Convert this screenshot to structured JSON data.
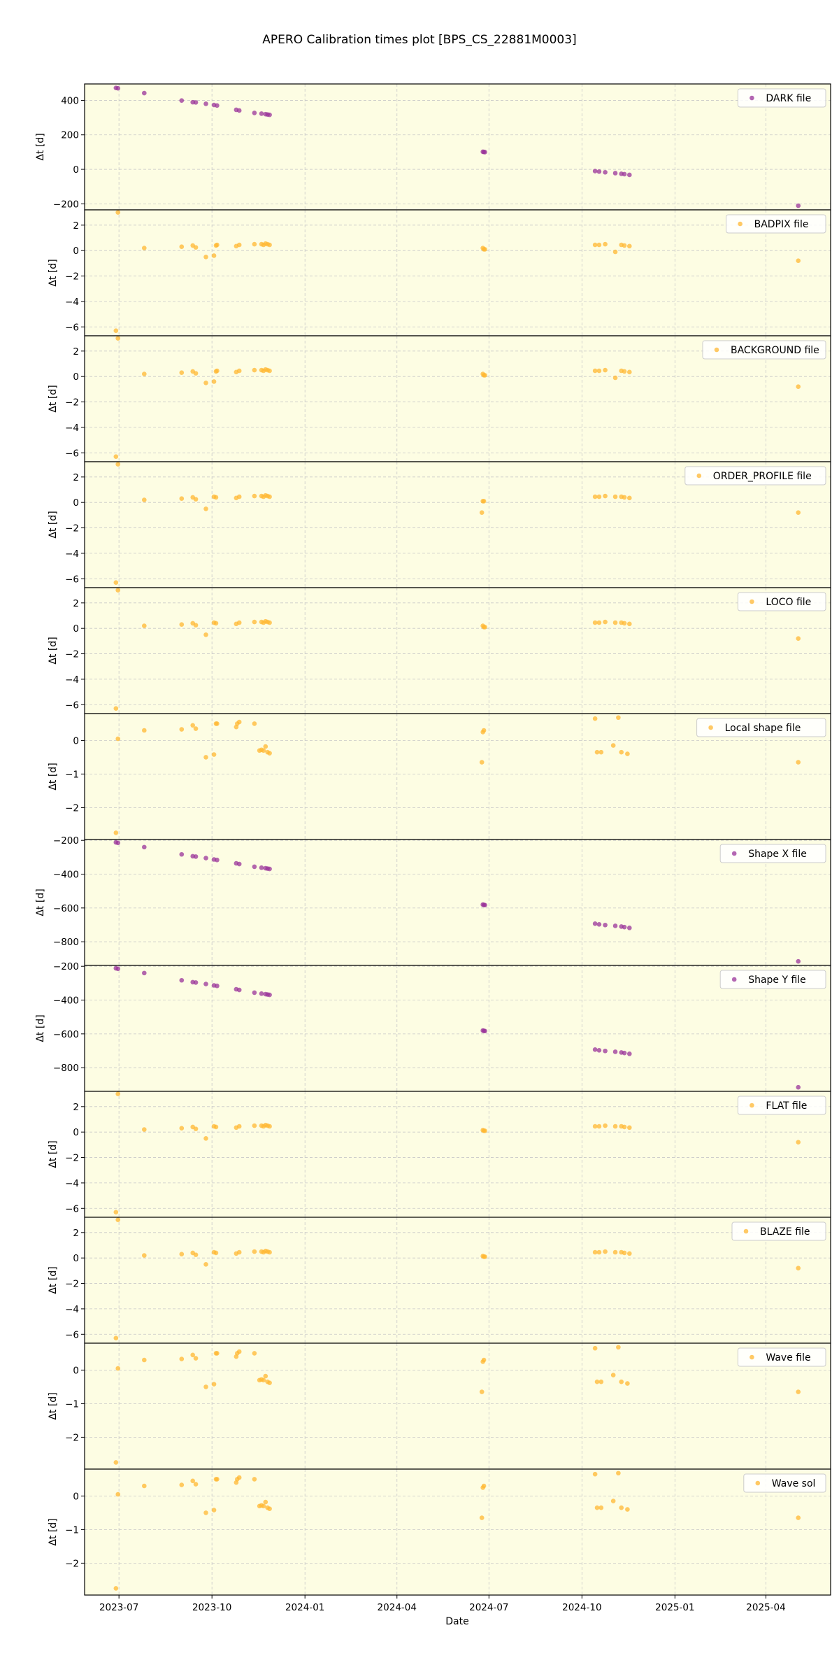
{
  "chart_data": {
    "type": "scatter",
    "title": "APERO Calibration times plot [BPS_CS_22881M0003]",
    "xlabel": "Date",
    "x_ticks": [
      "2023-07",
      "2023-10",
      "2024-01",
      "2024-04",
      "2024-07",
      "2024-10",
      "2025-01",
      "2025-04"
    ],
    "x_tick_dates": [
      "2023-07-01",
      "2023-10-01",
      "2024-01-01",
      "2024-04-01",
      "2024-07-01",
      "2024-10-01",
      "2025-01-01",
      "2025-04-01"
    ],
    "xlim": [
      "2023-05-28",
      "2025-06-04"
    ],
    "grid": true,
    "background": "#fdfde3",
    "colors": {
      "purple": "#993399",
      "orange": "#ffb732"
    },
    "panels": [
      {
        "legend": "DARK file",
        "color": "purple",
        "ylabel": "Δt [d]",
        "ylim": [
          -235,
          495
        ],
        "yticks": [
          -200,
          0,
          200,
          400
        ],
        "x": [
          "2023-06-28",
          "2023-06-30",
          "2023-07-26",
          "2023-09-01",
          "2023-09-12",
          "2023-09-15",
          "2023-09-25",
          "2023-10-03",
          "2023-10-06",
          "2023-10-25",
          "2023-10-28",
          "2023-11-12",
          "2023-11-19",
          "2023-11-23",
          "2023-11-25",
          "2023-11-27",
          "2024-06-25",
          "2024-06-26",
          "2024-06-27",
          "2024-10-14",
          "2024-10-18",
          "2024-10-24",
          "2024-11-03",
          "2024-11-09",
          "2024-11-12",
          "2024-11-17",
          "2025-05-03"
        ],
        "y": [
          472,
          470,
          442,
          399,
          389,
          388,
          380,
          373,
          370,
          345,
          341,
          327,
          323,
          320,
          318,
          316,
          102,
          101,
          100,
          -10,
          -13,
          -17,
          -22,
          -26,
          -28,
          -32,
          -211
        ]
      },
      {
        "legend": "BADPIX file",
        "color": "orange",
        "ylabel": "Δt [d]",
        "ylim": [
          -6.7,
          3.2
        ],
        "yticks": [
          -6,
          -4,
          -2,
          0,
          2
        ],
        "x": [
          "2023-06-28",
          "2023-06-30",
          "2023-07-26",
          "2023-09-01",
          "2023-09-12",
          "2023-09-15",
          "2023-09-25",
          "2023-10-03",
          "2023-10-05",
          "2023-10-06",
          "2023-10-25",
          "2023-10-28",
          "2023-11-12",
          "2023-11-19",
          "2023-11-21",
          "2023-11-23",
          "2023-11-25",
          "2023-11-27",
          "2024-06-25",
          "2024-06-26",
          "2024-06-27",
          "2024-10-14",
          "2024-10-18",
          "2024-10-24",
          "2024-11-03",
          "2024-11-09",
          "2024-11-12",
          "2024-11-17",
          "2025-05-03"
        ],
        "y": [
          -6.3,
          3.0,
          0.2,
          0.3,
          0.4,
          0.25,
          -0.5,
          -0.4,
          0.4,
          0.45,
          0.35,
          0.45,
          0.5,
          0.5,
          0.45,
          0.55,
          0.5,
          0.45,
          0.2,
          0.1,
          0.1,
          0.45,
          0.45,
          0.5,
          -0.1,
          0.45,
          0.4,
          0.35,
          -0.8
        ]
      },
      {
        "legend": "BACKGROUND file",
        "color": "orange",
        "ylabel": "Δt [d]",
        "ylim": [
          -6.7,
          3.2
        ],
        "yticks": [
          -6,
          -4,
          -2,
          0,
          2
        ],
        "x": [
          "2023-06-28",
          "2023-06-30",
          "2023-07-26",
          "2023-09-01",
          "2023-09-12",
          "2023-09-15",
          "2023-09-25",
          "2023-10-03",
          "2023-10-05",
          "2023-10-06",
          "2023-10-25",
          "2023-10-28",
          "2023-11-12",
          "2023-11-19",
          "2023-11-21",
          "2023-11-23",
          "2023-11-25",
          "2023-11-27",
          "2024-06-25",
          "2024-06-26",
          "2024-06-27",
          "2024-10-14",
          "2024-10-18",
          "2024-10-24",
          "2024-11-03",
          "2024-11-09",
          "2024-11-12",
          "2024-11-17",
          "2025-05-03"
        ],
        "y": [
          -6.3,
          3.0,
          0.2,
          0.3,
          0.4,
          0.25,
          -0.5,
          -0.4,
          0.4,
          0.45,
          0.35,
          0.45,
          0.5,
          0.5,
          0.45,
          0.55,
          0.5,
          0.45,
          0.2,
          0.1,
          0.1,
          0.45,
          0.45,
          0.5,
          -0.1,
          0.45,
          0.4,
          0.35,
          -0.8
        ]
      },
      {
        "legend": "ORDER_PROFILE file",
        "color": "orange",
        "ylabel": "Δt [d]",
        "ylim": [
          -6.7,
          3.2
        ],
        "yticks": [
          -6,
          -4,
          -2,
          0,
          2
        ],
        "x": [
          "2023-06-28",
          "2023-06-30",
          "2023-07-26",
          "2023-09-01",
          "2023-09-12",
          "2023-09-15",
          "2023-09-25",
          "2023-10-03",
          "2023-10-05",
          "2023-10-25",
          "2023-10-28",
          "2023-11-12",
          "2023-11-19",
          "2023-11-21",
          "2023-11-23",
          "2023-11-25",
          "2023-11-27",
          "2024-06-24",
          "2024-06-25",
          "2024-06-26",
          "2024-10-14",
          "2024-10-18",
          "2024-10-24",
          "2024-11-03",
          "2024-11-09",
          "2024-11-12",
          "2024-11-17",
          "2025-05-03"
        ],
        "y": [
          -6.3,
          3.0,
          0.2,
          0.3,
          0.4,
          0.25,
          -0.5,
          0.45,
          0.4,
          0.35,
          0.45,
          0.5,
          0.5,
          0.45,
          0.55,
          0.5,
          0.45,
          -0.8,
          0.1,
          0.1,
          0.45,
          0.45,
          0.5,
          0.45,
          0.45,
          0.4,
          0.35,
          -0.8
        ]
      },
      {
        "legend": "LOCO file",
        "color": "orange",
        "ylabel": "Δt [d]",
        "ylim": [
          -6.7,
          3.2
        ],
        "yticks": [
          -6,
          -4,
          -2,
          0,
          2
        ],
        "x": [
          "2023-06-28",
          "2023-06-30",
          "2023-07-26",
          "2023-09-01",
          "2023-09-12",
          "2023-09-15",
          "2023-09-25",
          "2023-10-03",
          "2023-10-05",
          "2023-10-25",
          "2023-10-28",
          "2023-11-12",
          "2023-11-19",
          "2023-11-21",
          "2023-11-23",
          "2023-11-25",
          "2023-11-27",
          "2024-06-25",
          "2024-06-26",
          "2024-06-27",
          "2024-10-14",
          "2024-10-18",
          "2024-10-24",
          "2024-11-03",
          "2024-11-09",
          "2024-11-12",
          "2024-11-17",
          "2025-05-03"
        ],
        "y": [
          -6.3,
          3.0,
          0.2,
          0.3,
          0.4,
          0.25,
          -0.5,
          0.45,
          0.4,
          0.35,
          0.45,
          0.5,
          0.5,
          0.45,
          0.55,
          0.5,
          0.45,
          0.2,
          0.1,
          0.1,
          0.45,
          0.45,
          0.5,
          0.45,
          0.45,
          0.4,
          0.35,
          -0.8
        ]
      },
      {
        "legend": "Local shape file",
        "color": "orange",
        "ylabel": "Δt [d]",
        "ylim": [
          -2.95,
          0.8
        ],
        "yticks": [
          -2,
          -1,
          0
        ],
        "x": [
          "2023-06-28",
          "2023-06-30",
          "2023-07-26",
          "2023-09-01",
          "2023-09-12",
          "2023-09-15",
          "2023-09-25",
          "2023-10-03",
          "2023-10-05",
          "2023-10-06",
          "2023-10-25",
          "2023-10-26",
          "2023-10-28",
          "2023-11-12",
          "2023-11-17",
          "2023-11-19",
          "2023-11-21",
          "2023-11-23",
          "2023-11-25",
          "2023-11-27",
          "2024-06-24",
          "2024-06-25",
          "2024-06-26",
          "2024-10-14",
          "2024-10-16",
          "2024-10-20",
          "2024-11-01",
          "2024-11-06",
          "2024-11-09",
          "2024-11-15",
          "2025-05-03"
        ],
        "y": [
          -2.75,
          0.05,
          0.3,
          0.33,
          0.45,
          0.35,
          -0.5,
          -0.42,
          0.5,
          0.5,
          0.4,
          0.5,
          0.55,
          0.5,
          -0.3,
          -0.28,
          -0.3,
          -0.18,
          -0.35,
          -0.38,
          -0.65,
          0.25,
          0.3,
          0.65,
          -0.35,
          -0.35,
          -0.15,
          0.68,
          -0.35,
          -0.4,
          -0.65
        ]
      },
      {
        "legend": "Shape X file",
        "color": "purple",
        "ylabel": "Δt [d]",
        "ylim": [
          -940,
          -195
        ],
        "yticks": [
          -800,
          -600,
          -400,
          -200
        ],
        "x": [
          "2023-06-28",
          "2023-06-30",
          "2023-07-26",
          "2023-09-01",
          "2023-09-12",
          "2023-09-15",
          "2023-09-25",
          "2023-10-03",
          "2023-10-06",
          "2023-10-25",
          "2023-10-28",
          "2023-11-12",
          "2023-11-19",
          "2023-11-23",
          "2023-11-25",
          "2023-11-27",
          "2024-06-25",
          "2024-06-26",
          "2024-06-27",
          "2024-10-14",
          "2024-10-18",
          "2024-10-24",
          "2024-11-03",
          "2024-11-09",
          "2024-11-12",
          "2024-11-17",
          "2025-05-03"
        ],
        "y": [
          -212,
          -215,
          -240,
          -283,
          -294,
          -296,
          -305,
          -313,
          -316,
          -336,
          -340,
          -356,
          -362,
          -365,
          -367,
          -369,
          -580,
          -582,
          -583,
          -693,
          -697,
          -701,
          -706,
          -710,
          -713,
          -718,
          -916
        ]
      },
      {
        "legend": "Shape Y file",
        "color": "purple",
        "ylabel": "Δt [d]",
        "ylim": [
          -940,
          -195
        ],
        "yticks": [
          -800,
          -600,
          -400,
          -200
        ],
        "x": [
          "2023-06-28",
          "2023-06-30",
          "2023-07-26",
          "2023-09-01",
          "2023-09-12",
          "2023-09-15",
          "2023-09-25",
          "2023-10-03",
          "2023-10-06",
          "2023-10-25",
          "2023-10-28",
          "2023-11-12",
          "2023-11-19",
          "2023-11-23",
          "2023-11-25",
          "2023-11-27",
          "2024-06-25",
          "2024-06-26",
          "2024-06-27",
          "2024-10-14",
          "2024-10-18",
          "2024-10-24",
          "2024-11-03",
          "2024-11-09",
          "2024-11-12",
          "2024-11-17",
          "2025-05-03"
        ],
        "y": [
          -212,
          -215,
          -240,
          -283,
          -294,
          -296,
          -305,
          -313,
          -316,
          -336,
          -340,
          -356,
          -362,
          -365,
          -367,
          -369,
          -580,
          -582,
          -583,
          -693,
          -697,
          -701,
          -706,
          -710,
          -713,
          -718,
          -916
        ]
      },
      {
        "legend": "FLAT file",
        "color": "orange",
        "ylabel": "Δt [d]",
        "ylim": [
          -6.7,
          3.2
        ],
        "yticks": [
          -6,
          -4,
          -2,
          0,
          2
        ],
        "x": [
          "2023-06-28",
          "2023-06-30",
          "2023-07-26",
          "2023-09-01",
          "2023-09-12",
          "2023-09-15",
          "2023-09-25",
          "2023-10-03",
          "2023-10-05",
          "2023-10-25",
          "2023-10-28",
          "2023-11-12",
          "2023-11-19",
          "2023-11-21",
          "2023-11-23",
          "2023-11-25",
          "2023-11-27",
          "2024-06-25",
          "2024-06-26",
          "2024-06-27",
          "2024-10-14",
          "2024-10-18",
          "2024-10-24",
          "2024-11-03",
          "2024-11-09",
          "2024-11-12",
          "2024-11-17",
          "2025-05-03"
        ],
        "y": [
          -6.3,
          3.0,
          0.2,
          0.3,
          0.4,
          0.25,
          -0.5,
          0.45,
          0.4,
          0.35,
          0.45,
          0.5,
          0.5,
          0.45,
          0.55,
          0.5,
          0.45,
          0.15,
          0.1,
          0.1,
          0.45,
          0.45,
          0.5,
          0.45,
          0.45,
          0.4,
          0.35,
          -0.8
        ]
      },
      {
        "legend": "BLAZE file",
        "color": "orange",
        "ylabel": "Δt [d]",
        "ylim": [
          -6.7,
          3.2
        ],
        "yticks": [
          -6,
          -4,
          -2,
          0,
          2
        ],
        "x": [
          "2023-06-28",
          "2023-06-30",
          "2023-07-26",
          "2023-09-01",
          "2023-09-12",
          "2023-09-15",
          "2023-09-25",
          "2023-10-03",
          "2023-10-05",
          "2023-10-25",
          "2023-10-28",
          "2023-11-12",
          "2023-11-19",
          "2023-11-21",
          "2023-11-23",
          "2023-11-25",
          "2023-11-27",
          "2024-06-25",
          "2024-06-26",
          "2024-06-27",
          "2024-10-14",
          "2024-10-18",
          "2024-10-24",
          "2024-11-03",
          "2024-11-09",
          "2024-11-12",
          "2024-11-17",
          "2025-05-03"
        ],
        "y": [
          -6.3,
          3.0,
          0.2,
          0.3,
          0.4,
          0.25,
          -0.5,
          0.45,
          0.4,
          0.35,
          0.45,
          0.5,
          0.5,
          0.45,
          0.55,
          0.5,
          0.45,
          0.15,
          0.1,
          0.1,
          0.45,
          0.45,
          0.5,
          0.45,
          0.45,
          0.4,
          0.35,
          -0.8
        ]
      },
      {
        "legend": "Wave file",
        "color": "orange",
        "ylabel": "Δt [d]",
        "ylim": [
          -2.95,
          0.8
        ],
        "yticks": [
          -2,
          -1,
          0
        ],
        "x": [
          "2023-06-28",
          "2023-06-30",
          "2023-07-26",
          "2023-09-01",
          "2023-09-12",
          "2023-09-15",
          "2023-09-25",
          "2023-10-03",
          "2023-10-05",
          "2023-10-06",
          "2023-10-25",
          "2023-10-26",
          "2023-10-28",
          "2023-11-12",
          "2023-11-17",
          "2023-11-19",
          "2023-11-21",
          "2023-11-23",
          "2023-11-25",
          "2023-11-27",
          "2024-06-24",
          "2024-06-25",
          "2024-06-26",
          "2024-10-14",
          "2024-10-16",
          "2024-10-20",
          "2024-11-01",
          "2024-11-06",
          "2024-11-09",
          "2024-11-15",
          "2025-05-03"
        ],
        "y": [
          -2.75,
          0.05,
          0.3,
          0.33,
          0.45,
          0.35,
          -0.5,
          -0.42,
          0.5,
          0.5,
          0.4,
          0.5,
          0.55,
          0.5,
          -0.3,
          -0.28,
          -0.3,
          -0.18,
          -0.35,
          -0.38,
          -0.65,
          0.25,
          0.3,
          0.65,
          -0.35,
          -0.35,
          -0.15,
          0.68,
          -0.35,
          -0.4,
          -0.65
        ]
      },
      {
        "legend": "Wave sol",
        "color": "orange",
        "ylabel": "Δt [d]",
        "ylim": [
          -2.95,
          0.8
        ],
        "yticks": [
          -2,
          -1,
          0
        ],
        "x": [
          "2023-06-28",
          "2023-06-30",
          "2023-07-26",
          "2023-09-01",
          "2023-09-12",
          "2023-09-15",
          "2023-09-25",
          "2023-10-03",
          "2023-10-05",
          "2023-10-06",
          "2023-10-25",
          "2023-10-26",
          "2023-10-28",
          "2023-11-12",
          "2023-11-17",
          "2023-11-19",
          "2023-11-21",
          "2023-11-23",
          "2023-11-25",
          "2023-11-27",
          "2024-06-24",
          "2024-06-25",
          "2024-06-26",
          "2024-10-14",
          "2024-10-16",
          "2024-10-20",
          "2024-11-01",
          "2024-11-06",
          "2024-11-09",
          "2024-11-15",
          "2025-05-03"
        ],
        "y": [
          -2.75,
          0.05,
          0.3,
          0.33,
          0.45,
          0.35,
          -0.5,
          -0.42,
          0.5,
          0.5,
          0.4,
          0.5,
          0.55,
          0.5,
          -0.3,
          -0.28,
          -0.3,
          -0.18,
          -0.35,
          -0.38,
          -0.65,
          0.25,
          0.3,
          0.65,
          -0.35,
          -0.35,
          -0.15,
          0.68,
          -0.35,
          -0.4,
          -0.65
        ]
      }
    ]
  }
}
